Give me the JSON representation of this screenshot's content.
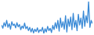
{
  "chart_data": {
    "type": "line",
    "color": "#3a8ad6",
    "tick_labels": false,
    "grid": false,
    "categories": [
      null,
      null,
      null,
      null,
      null,
      null,
      null,
      null,
      null,
      null,
      null,
      null,
      null,
      null,
      null,
      null,
      null,
      null,
      null,
      null,
      null,
      null,
      null,
      null,
      null,
      null,
      null,
      null,
      null,
      null,
      null,
      null,
      null,
      null,
      null,
      null,
      null,
      null,
      null,
      null,
      null,
      null,
      null,
      null,
      null,
      null,
      null,
      null,
      null,
      null,
      null,
      null,
      null,
      null,
      null,
      null,
      null,
      null,
      null,
      null,
      null,
      null,
      null,
      null,
      null,
      null,
      null,
      null,
      null,
      null,
      null,
      null
    ],
    "values": [
      45,
      38,
      50,
      42,
      55,
      40,
      48,
      36,
      52,
      44,
      47,
      39,
      50,
      41,
      46,
      35,
      43,
      38,
      49,
      37,
      42,
      33,
      40,
      30,
      38,
      28,
      36,
      31,
      39,
      29,
      35,
      32,
      40,
      27,
      37,
      30,
      42,
      33,
      38,
      29,
      44,
      35,
      50,
      38,
      55,
      32,
      60,
      40,
      52,
      36,
      65,
      30,
      58,
      42,
      62,
      35,
      70,
      40,
      55,
      33,
      68,
      45,
      60,
      38,
      75,
      42,
      65,
      50,
      95,
      40,
      55,
      48
    ]
  }
}
